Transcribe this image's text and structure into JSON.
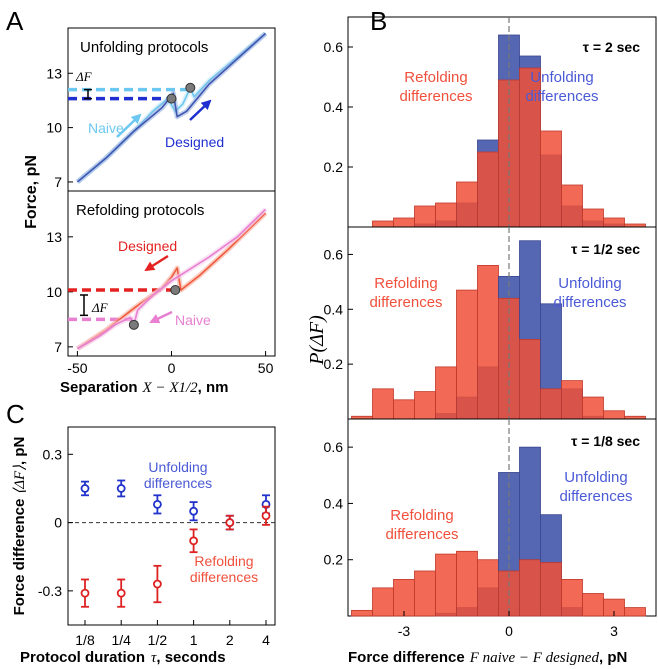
{
  "panel_labels": {
    "a": "A",
    "b": "B",
    "c": "C"
  },
  "colors": {
    "unfold": "#3f55b0",
    "unfold_light": "#8ea9dc",
    "cyan": "#6cc8f0",
    "designed_blue": "#1f2fd0",
    "refold": "#ef5a3c",
    "refold_light": "#f6a08c",
    "pink": "#e87fd0",
    "designed_red": "#e52222",
    "legend_blue": "#4b5ad6",
    "legend_red": "#f0503c",
    "marker": "#7a7a7a"
  },
  "chart_data": [
    {
      "id": "A-top",
      "type": "line",
      "title": "Unfolding protocols",
      "xlim": [
        -55,
        55
      ],
      "ylim": [
        6.5,
        15.5
      ],
      "yticks": [
        7,
        10,
        13
      ],
      "annotations": {
        "delta_f": "ΔF",
        "naive": "Naive",
        "designed": "Designed"
      },
      "series": [
        {
          "name": "Naive",
          "points": [
            [
              -50,
              7.0
            ],
            [
              -35,
              8.3
            ],
            [
              -20,
              9.8
            ],
            [
              -10,
              10.9
            ],
            [
              -2,
              11.6
            ],
            [
              2,
              10.9
            ],
            [
              6,
              11.3
            ],
            [
              10,
              12.2
            ],
            [
              12,
              11.7
            ],
            [
              20,
              12.6
            ],
            [
              35,
              13.9
            ],
            [
              50,
              15.2
            ]
          ]
        },
        {
          "name": "Designed",
          "points": [
            [
              -50,
              7.0
            ],
            [
              -35,
              8.3
            ],
            [
              -20,
              9.8
            ],
            [
              -5,
              11.1
            ],
            [
              1,
              11.9
            ],
            [
              3,
              10.6
            ],
            [
              8,
              10.9
            ],
            [
              20,
              12.4
            ],
            [
              35,
              13.8
            ],
            [
              50,
              15.2
            ]
          ]
        }
      ],
      "levels": {
        "naive": 12.1,
        "designed": 11.6
      },
      "markers": [
        [
          0,
          11.6
        ],
        [
          10,
          12.2
        ]
      ]
    },
    {
      "id": "A-bottom",
      "type": "line",
      "title": "Refolding protocols",
      "xlim": [
        -55,
        55
      ],
      "ylim": [
        6.5,
        15.5
      ],
      "yticks": [
        7,
        10,
        13
      ],
      "xticks": [
        -50,
        0,
        50
      ],
      "ylabel": "Force, pN",
      "xlabel": "Separation",
      "xlabel_math": "X − X1/2",
      "xlabel_unit": ", nm",
      "annotations": {
        "delta_f": "ΔF",
        "naive": "Naive",
        "designed": "Designed"
      },
      "series": [
        {
          "name": "Designed",
          "points": [
            [
              -50,
              6.9
            ],
            [
              -35,
              7.9
            ],
            [
              -20,
              9.1
            ],
            [
              -5,
              10.2
            ],
            [
              0,
              10.8
            ],
            [
              3,
              11.3
            ],
            [
              5,
              10.1
            ],
            [
              15,
              10.9
            ],
            [
              30,
              12.3
            ],
            [
              50,
              14.3
            ]
          ]
        },
        {
          "name": "Naive",
          "points": [
            [
              -50,
              6.9
            ],
            [
              -38,
              7.6
            ],
            [
              -30,
              8.2
            ],
            [
              -22,
              8.6
            ],
            [
              -20,
              8.2
            ],
            [
              -18,
              9.0
            ],
            [
              -10,
              9.8
            ],
            [
              0,
              10.6
            ],
            [
              20,
              11.9
            ],
            [
              35,
              13.0
            ],
            [
              50,
              14.5
            ]
          ]
        }
      ],
      "levels": {
        "naive": 8.5,
        "designed": 10.1
      },
      "markers": [
        [
          -20,
          8.2
        ],
        [
          2,
          10.1
        ]
      ]
    },
    {
      "id": "B",
      "type": "bar",
      "ylabel": "P(ΔF)",
      "xlabel": "Force difference",
      "xlabel_math": "F naive − F designed",
      "xlabel_unit": ", pN",
      "xlim": [
        -4.6,
        4.2
      ],
      "xticks": [
        -3,
        0,
        3
      ],
      "ylim": [
        0,
        0.7
      ],
      "yticks": [
        0.2,
        0.4,
        0.6
      ],
      "bin_edges": [
        -4.5,
        -3.9,
        -3.3,
        -2.7,
        -2.1,
        -1.5,
        -0.9,
        -0.3,
        0.3,
        0.9,
        1.5,
        2.1,
        2.7,
        3.3,
        3.9
      ],
      "panels": [
        {
          "tau_label": "τ = 2 sec",
          "refolding_label": [
            "Refolding",
            "differences"
          ],
          "unfolding_label": [
            "Unfolding",
            "differences"
          ],
          "unfolding": [
            0,
            0,
            0,
            0.01,
            0.02,
            0.08,
            0.29,
            0.64,
            0.57,
            0.24,
            0.07,
            0.02,
            0.01,
            0
          ],
          "refolding": [
            0,
            0.02,
            0.03,
            0.07,
            0.08,
            0.15,
            0.25,
            0.49,
            0.53,
            0.32,
            0.14,
            0.06,
            0.03,
            0.01
          ]
        },
        {
          "tau_label": "τ = 1/2 sec",
          "refolding_label": [
            "Refolding",
            "differences"
          ],
          "unfolding_label": [
            "Unfolding",
            "differences"
          ],
          "unfolding": [
            0,
            0,
            0,
            0,
            0.02,
            0.08,
            0.19,
            0.52,
            0.65,
            0.42,
            0.11,
            0.01,
            0,
            0
          ],
          "refolding": [
            0.01,
            0.11,
            0.07,
            0.1,
            0.19,
            0.47,
            0.56,
            0.44,
            0.29,
            0.11,
            0.14,
            0.08,
            0.03,
            0.01
          ]
        },
        {
          "tau_label": "τ = 1/8 sec",
          "refolding_label": [
            "Refolding",
            "differences"
          ],
          "unfolding_label": [
            "Unfolding",
            "differences"
          ],
          "unfolding": [
            0,
            0,
            0,
            0,
            0.01,
            0.03,
            0.1,
            0.51,
            0.6,
            0.36,
            0.03,
            0,
            0,
            0
          ],
          "refolding": [
            0.02,
            0.1,
            0.13,
            0.16,
            0.22,
            0.23,
            0.2,
            0.16,
            0.2,
            0.19,
            0.13,
            0.08,
            0.06,
            0.03
          ]
        }
      ]
    },
    {
      "id": "C",
      "type": "scatter",
      "ylabel": "Force difference",
      "ylabel_math": "⟨ΔF⟩",
      "ylabel_unit": ", pN",
      "xlabel": "Protocol duration",
      "xlabel_math": "τ",
      "xlabel_unit": ", seconds",
      "categories": [
        "1/8",
        "1/4",
        "1/2",
        "1",
        "2",
        "4"
      ],
      "ylim": [
        -0.45,
        0.42
      ],
      "yticks": [
        -0.3,
        0,
        0.3
      ],
      "series": [
        {
          "name": "Unfolding differences",
          "values": [
            0.15,
            0.15,
            0.08,
            0.05,
            0.0,
            0.08
          ],
          "errors": [
            0.03,
            0.035,
            0.04,
            0.04,
            0.03,
            0.04
          ]
        },
        {
          "name": "Refolding differences",
          "values": [
            -0.31,
            -0.31,
            -0.27,
            -0.08,
            0.0,
            0.03
          ],
          "errors": [
            0.06,
            0.06,
            0.08,
            0.05,
            0.03,
            0.04
          ]
        }
      ],
      "unfolding_label": [
        "Unfolding",
        "differences"
      ],
      "refolding_label": [
        "Refolding",
        "differences"
      ]
    }
  ]
}
